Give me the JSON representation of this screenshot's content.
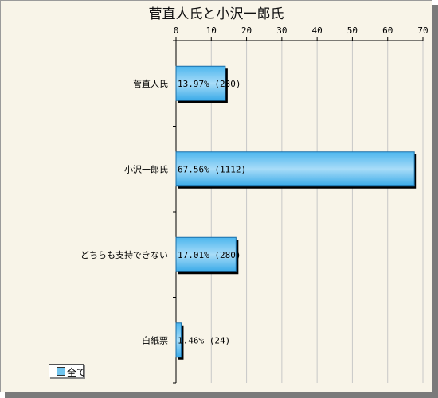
{
  "chart_data": {
    "type": "bar",
    "orientation": "horizontal",
    "title": "菅直人氏と小沢一郎氏",
    "categories": [
      "菅直人氏",
      "小沢一郎氏",
      "どちらも支持できない",
      "白紙票"
    ],
    "values": [
      13.97,
      67.56,
      17.01,
      1.46
    ],
    "data_labels": [
      "13.97% (230)",
      "67.56% (1112)",
      "17.01% (280)",
      "1.46% (24)"
    ],
    "xlim": [
      0,
      70
    ],
    "x_ticks": [
      0,
      10,
      20,
      30,
      40,
      50,
      60,
      70
    ],
    "x_axis_position": "top",
    "grid": true,
    "legend": {
      "label": "全て",
      "placement": "bottom-left"
    },
    "colors": {
      "bar": "#3fb0ec",
      "bar_light": "#a8dcf8",
      "bar_shadow": "#000000",
      "grid": "#c8c8c8"
    }
  }
}
